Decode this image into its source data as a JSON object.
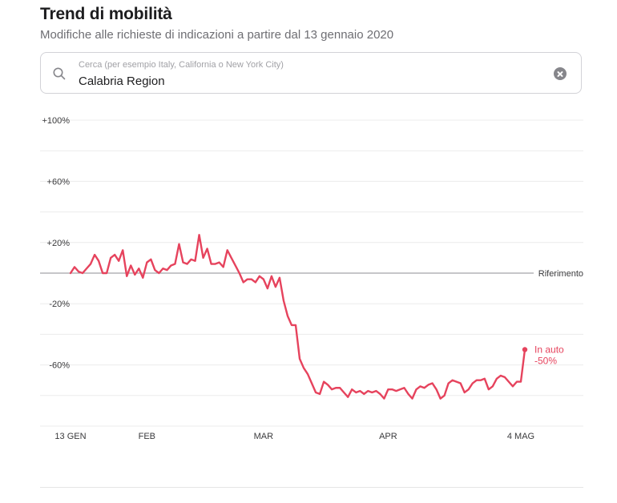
{
  "header": {
    "title": "Trend di mobilità",
    "subtitle": "Modifiche alle richieste di indicazioni a partire dal 13 gennaio 2020"
  },
  "search": {
    "placeholder": "Cerca (per esempio Italy, California o New York City)",
    "value": "Calabria Region",
    "icon": "search-icon",
    "clear_icon": "clear-icon"
  },
  "colors": {
    "series": "#e6435d",
    "grid": "#ececec",
    "baseline": "#8e8e93",
    "axis_text": "#3a3a3c"
  },
  "chart_data": {
    "type": "line",
    "y_ticks": [
      "+100%",
      "+60%",
      "+20%",
      "-20%",
      "-60%"
    ],
    "y_tick_values": [
      100,
      60,
      20,
      -20,
      -60
    ],
    "ylim": [
      -100,
      100
    ],
    "x_ticks": [
      "13 GEN",
      "FEB",
      "MAR",
      "APR",
      "4 MAG"
    ],
    "x_tick_days": [
      0,
      19,
      48,
      79,
      112
    ],
    "baseline_label": "Riferimento",
    "baseline_value": 0,
    "series": [
      {
        "name": "In auto",
        "end_label": "-50%",
        "values": [
          0,
          4,
          1,
          0,
          3,
          6,
          12,
          8,
          0,
          0,
          10,
          12,
          8,
          15,
          -2,
          5,
          -1,
          3,
          -3,
          7,
          9,
          2,
          0,
          3,
          2,
          5,
          6,
          19,
          7,
          6,
          9,
          8,
          25,
          10,
          16,
          6,
          6,
          7,
          4,
          15,
          10,
          5,
          0,
          -6,
          -4,
          -4,
          -6,
          -2,
          -4,
          -10,
          -2,
          -9,
          -3,
          -18,
          -28,
          -34,
          -34,
          -56,
          -62,
          -66,
          -72,
          -78,
          -79,
          -71,
          -73,
          -76,
          -75,
          -75,
          -78,
          -81,
          -76,
          -78,
          -77,
          -79,
          -77,
          -78,
          -77,
          -79,
          -82,
          -76,
          -76,
          -77,
          -76,
          -75,
          -79,
          -82,
          -76,
          -74,
          -75,
          -73,
          -72,
          -76,
          -82,
          -80,
          -72,
          -70,
          -71,
          -72,
          -78,
          -76,
          -72,
          -70,
          -70,
          -69,
          -76,
          -74,
          -69,
          -67,
          -68,
          -71,
          -74,
          -71,
          -71,
          -50
        ]
      }
    ]
  }
}
